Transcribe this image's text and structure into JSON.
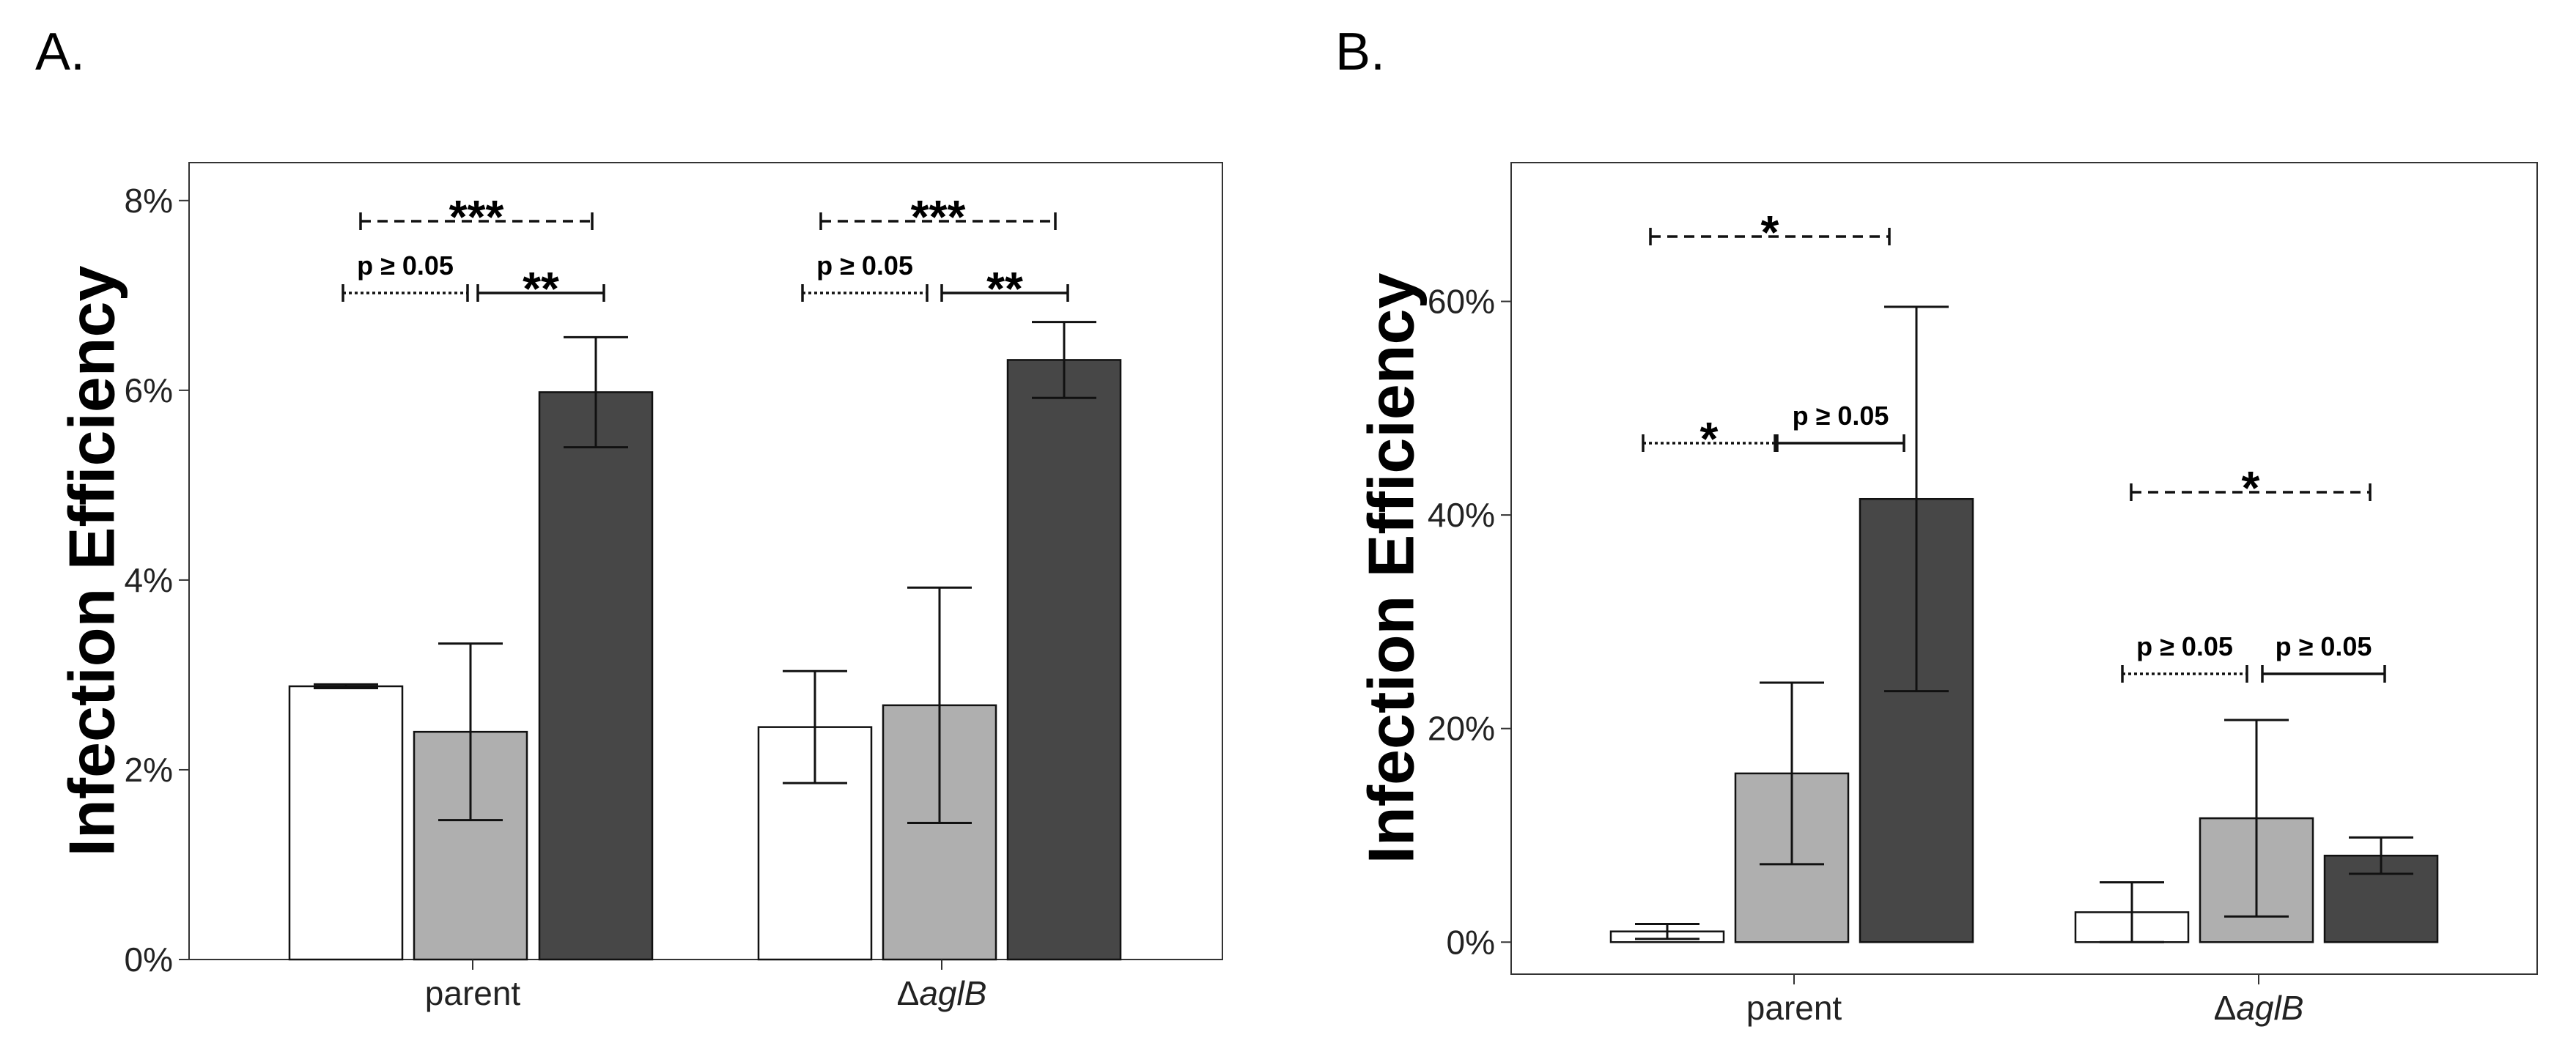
{
  "chart_data": [
    {
      "type": "bar",
      "panel": "A.",
      "ylabel": "Infection Efficiency",
      "ylim": [
        0,
        8.4
      ],
      "yticks": [
        0,
        2,
        4,
        6,
        8
      ],
      "ytick_labels": [
        "0%",
        "2%",
        "4%",
        "6%",
        "8%"
      ],
      "groups": [
        {
          "label": "parent",
          "italic": false,
          "values": [
            2.88,
            2.4,
            5.98
          ],
          "errors": [
            0.02,
            0.93,
            0.58
          ],
          "comparisons": [
            {
              "from": 0,
              "to": 2,
              "style": "dashed",
              "label": "***"
            },
            {
              "from": 0,
              "to": 1,
              "style": "dotted",
              "label": "p  ≥ 0.05"
            },
            {
              "from": 1,
              "to": 2,
              "style": "solid",
              "label": "**"
            }
          ]
        },
        {
          "label": "ΔaglB",
          "italic": true,
          "values": [
            2.45,
            2.68,
            6.32
          ],
          "errors": [
            0.59,
            1.24,
            0.4
          ],
          "comparisons": [
            {
              "from": 0,
              "to": 2,
              "style": "dashed",
              "label": "***"
            },
            {
              "from": 0,
              "to": 1,
              "style": "dotted",
              "label": "p  ≥ 0.05"
            },
            {
              "from": 1,
              "to": 2,
              "style": "solid",
              "label": "**"
            }
          ]
        }
      ],
      "bar_colors": [
        "#ffffff",
        "#afafaf",
        "#474747"
      ],
      "grid": false,
      "legend": "none"
    },
    {
      "type": "bar",
      "panel": "B.",
      "ylabel": "Infection Efficiency",
      "ylim": [
        -3,
        73
      ],
      "yticks": [
        0,
        20,
        40,
        60
      ],
      "ytick_labels": [
        "0%",
        "20%",
        "40%",
        "60%"
      ],
      "groups": [
        {
          "label": "parent",
          "italic": false,
          "values": [
            1.0,
            15.8,
            41.5
          ],
          "errors": [
            0.7,
            8.5,
            18.0
          ],
          "comparisons": [
            {
              "from": 0,
              "to": 2,
              "style": "dashed",
              "label": "*"
            },
            {
              "from": 0,
              "to": 1,
              "style": "dotted",
              "label": "*"
            },
            {
              "from": 1,
              "to": 2,
              "style": "solid",
              "label": "p ≥ 0.05"
            }
          ]
        },
        {
          "label": "ΔaglB",
          "italic": true,
          "values": [
            2.8,
            11.6,
            8.1
          ],
          "errors": [
            2.8,
            9.2,
            1.7
          ],
          "comparisons": [
            {
              "from": 0,
              "to": 2,
              "style": "dashed",
              "label": "*"
            },
            {
              "from": 0,
              "to": 1,
              "style": "dotted",
              "label": "p  ≥ 0.05"
            },
            {
              "from": 1,
              "to": 2,
              "style": "solid",
              "label": "p ≥ 0.05"
            }
          ]
        }
      ],
      "bar_colors": [
        "#ffffff",
        "#afafaf",
        "#474747"
      ],
      "grid": false,
      "legend": "none"
    }
  ]
}
